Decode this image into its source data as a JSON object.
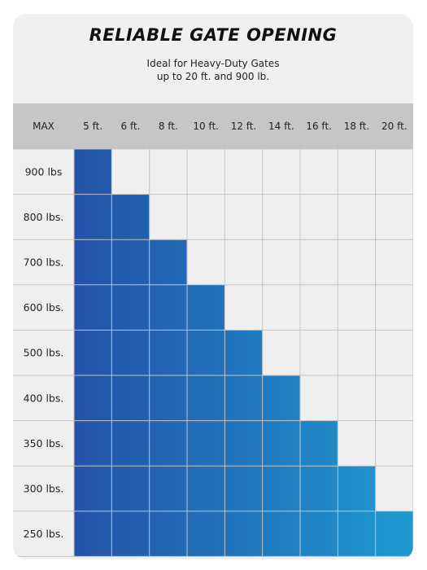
{
  "title": "RELIABLE GATE OPENING",
  "subtitle_line1": "Ideal for Heavy-Duty Gates",
  "subtitle_line2": "up to 20 ft. and 900 lb.",
  "colors": {
    "header_bg": "#c6c6c6",
    "cell_bg": "#efefef",
    "grid_line": "#c4c4c4",
    "fill_dark": "#2452a8",
    "fill_light": "#1e9ad0",
    "text": "#222222"
  },
  "chart_data": {
    "type": "table",
    "corner_label": "MAX",
    "columns": [
      "5 ft.",
      "6 ft.",
      "8 ft.",
      "10 ft.",
      "12 ft.",
      "14 ft.",
      "16 ft.",
      "18 ft.",
      "20 ft."
    ],
    "rows": [
      "900 lbs",
      "800 lbs.",
      "700 lbs.",
      "600 lbs.",
      "500 lbs.",
      "400 lbs.",
      "350 lbs.",
      "300 lbs.",
      "250 lbs."
    ],
    "max_gate_length_ft": [
      5,
      6,
      8,
      10,
      12,
      14,
      16,
      18,
      20
    ],
    "max_gate_length_labels": [
      "5 ft.",
      "6 ft.",
      "8 ft.",
      "10 ft.",
      "12 ft.",
      "14 ft.",
      "16 ft.",
      "18 ft.",
      "20 ft."
    ]
  }
}
